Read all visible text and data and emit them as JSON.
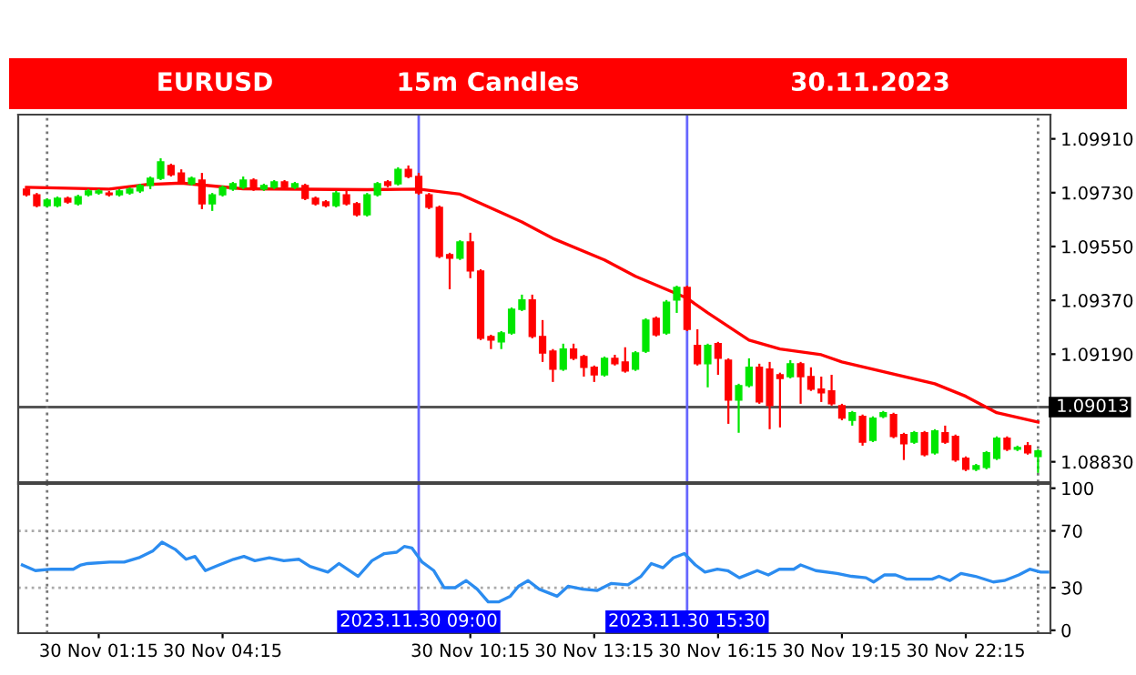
{
  "chart_data": [
    {
      "type": "candlestick",
      "title": "EURUSD",
      "subtitle": "15m Candles",
      "annotations": [
        "30.11.2023"
      ],
      "x": [
        "2023-11-29T23:30",
        "2023-11-29T23:45",
        "2023-11-30T00:00",
        "2023-11-30T00:15",
        "2023-11-30T00:30",
        "2023-11-30T00:45",
        "2023-11-30T01:00",
        "2023-11-30T01:15",
        "2023-11-30T01:30",
        "2023-11-30T01:45",
        "2023-11-30T02:00",
        "2023-11-30T02:15",
        "2023-11-30T02:30",
        "2023-11-30T02:45",
        "2023-11-30T03:00",
        "2023-11-30T03:15",
        "2023-11-30T03:30",
        "2023-11-30T03:45",
        "2023-11-30T04:00",
        "2023-11-30T04:15",
        "2023-11-30T04:30",
        "2023-11-30T04:45",
        "2023-11-30T05:00",
        "2023-11-30T05:15",
        "2023-11-30T05:30",
        "2023-11-30T05:45",
        "2023-11-30T06:00",
        "2023-11-30T06:15",
        "2023-11-30T06:30",
        "2023-11-30T06:45",
        "2023-11-30T07:00",
        "2023-11-30T07:15",
        "2023-11-30T07:30",
        "2023-11-30T07:45",
        "2023-11-30T08:00",
        "2023-11-30T08:15",
        "2023-11-30T08:30",
        "2023-11-30T08:45",
        "2023-11-30T09:00",
        "2023-11-30T09:15",
        "2023-11-30T09:30",
        "2023-11-30T09:45",
        "2023-11-30T10:00",
        "2023-11-30T10:15",
        "2023-11-30T10:30",
        "2023-11-30T10:45",
        "2023-11-30T11:00",
        "2023-11-30T11:15",
        "2023-11-30T11:30",
        "2023-11-30T11:45",
        "2023-11-30T12:00",
        "2023-11-30T12:15",
        "2023-11-30T12:30",
        "2023-11-30T12:45",
        "2023-11-30T13:00",
        "2023-11-30T13:15",
        "2023-11-30T13:30",
        "2023-11-30T13:45",
        "2023-11-30T14:00",
        "2023-11-30T14:15",
        "2023-11-30T14:30",
        "2023-11-30T14:45",
        "2023-11-30T15:00",
        "2023-11-30T15:15",
        "2023-11-30T15:30",
        "2023-11-30T15:45",
        "2023-11-30T16:00",
        "2023-11-30T16:15",
        "2023-11-30T16:30",
        "2023-11-30T16:45",
        "2023-11-30T17:00",
        "2023-11-30T17:15",
        "2023-11-30T17:30",
        "2023-11-30T17:45",
        "2023-11-30T18:00",
        "2023-11-30T18:15",
        "2023-11-30T18:30",
        "2023-11-30T18:45",
        "2023-11-30T19:00",
        "2023-11-30T19:15",
        "2023-11-30T19:30",
        "2023-11-30T19:45",
        "2023-11-30T20:00",
        "2023-11-30T20:15",
        "2023-11-30T20:30",
        "2023-11-30T20:45",
        "2023-11-30T21:00",
        "2023-11-30T21:15",
        "2023-11-30T21:30",
        "2023-11-30T21:45",
        "2023-11-30T22:00",
        "2023-11-30T22:15",
        "2023-11-30T22:30",
        "2023-11-30T22:45",
        "2023-11-30T23:00",
        "2023-11-30T23:15",
        "2023-11-30T23:30",
        "2023-11-30T23:45",
        "2023-12-01T00:00"
      ],
      "ohlc": [
        [
          1.09742,
          1.09748,
          1.09717,
          1.09723
        ],
        [
          1.09723,
          1.09729,
          1.09681,
          1.09687
        ],
        [
          1.09687,
          1.09711,
          1.09681,
          1.09705
        ],
        [
          1.09687,
          1.09717,
          1.09681,
          1.09711
        ],
        [
          1.09711,
          1.09717,
          1.09693,
          1.09699
        ],
        [
          1.09693,
          1.09723,
          1.09687,
          1.09717
        ],
        [
          1.09723,
          1.09742,
          1.09717,
          1.09736
        ],
        [
          1.09729,
          1.09742,
          1.09723,
          1.09736
        ],
        [
          1.09729,
          1.09736,
          1.09717,
          1.09723
        ],
        [
          1.09723,
          1.09742,
          1.09717,
          1.09736
        ],
        [
          1.09729,
          1.09748,
          1.09723,
          1.09742
        ],
        [
          1.09736,
          1.0976,
          1.09729,
          1.09754
        ],
        [
          1.09754,
          1.09784,
          1.09742,
          1.09778
        ],
        [
          1.09778,
          1.09845,
          1.09772,
          1.09833
        ],
        [
          1.09821,
          1.09827,
          1.09784,
          1.0979
        ],
        [
          1.09796,
          1.09808,
          1.0976,
          1.09766
        ],
        [
          1.0976,
          1.09784,
          1.09754,
          1.09778
        ],
        [
          1.09772,
          1.09796,
          1.09675,
          1.09693
        ],
        [
          1.09693,
          1.09729,
          1.09669,
          1.09723
        ],
        [
          1.09723,
          1.09754,
          1.09717,
          1.09748
        ],
        [
          1.09742,
          1.09766,
          1.09736,
          1.0976
        ],
        [
          1.09748,
          1.09784,
          1.09742,
          1.09772
        ],
        [
          1.09772,
          1.09778,
          1.09736,
          1.09742
        ],
        [
          1.09742,
          1.0976,
          1.09736,
          1.09754
        ],
        [
          1.09748,
          1.09772,
          1.09742,
          1.09766
        ],
        [
          1.09766,
          1.09772,
          1.09742,
          1.09748
        ],
        [
          1.09748,
          1.09766,
          1.09742,
          1.0976
        ],
        [
          1.09754,
          1.0976,
          1.09705,
          1.09711
        ],
        [
          1.09711,
          1.09717,
          1.09687,
          1.09693
        ],
        [
          1.09699,
          1.09705,
          1.09681,
          1.09687
        ],
        [
          1.09687,
          1.09736,
          1.09681,
          1.09729
        ],
        [
          1.09723,
          1.09736,
          1.09687,
          1.09693
        ],
        [
          1.09693,
          1.09699,
          1.0965,
          1.09656
        ],
        [
          1.09656,
          1.09729,
          1.0965,
          1.09723
        ],
        [
          1.09723,
          1.09766,
          1.09717,
          1.0976
        ],
        [
          1.09766,
          1.09772,
          1.09748,
          1.09754
        ],
        [
          1.0976,
          1.09815,
          1.09754,
          1.09808
        ],
        [
          1.09808,
          1.09821,
          1.09778,
          1.09784
        ],
        [
          1.09784,
          1.09796,
          1.09723,
          1.09729
        ],
        [
          1.09723,
          1.09729,
          1.09675,
          1.09681
        ],
        [
          1.09681,
          1.09687,
          1.09511,
          1.09517
        ],
        [
          1.09523,
          1.09529,
          1.09407,
          1.09511
        ],
        [
          1.09511,
          1.09571,
          1.09505,
          1.09565
        ],
        [
          1.09565,
          1.09596,
          1.09444,
          1.09468
        ],
        [
          1.09468,
          1.09474,
          1.09237,
          1.09243
        ],
        [
          1.09249,
          1.09255,
          1.09207,
          1.09237
        ],
        [
          1.09231,
          1.09267,
          1.09207,
          1.09261
        ],
        [
          1.09261,
          1.09346,
          1.09255,
          1.0934
        ],
        [
          1.0934,
          1.09389,
          1.09334,
          1.09371
        ],
        [
          1.09371,
          1.09389,
          1.09243,
          1.09249
        ],
        [
          1.09249,
          1.09304,
          1.09164,
          1.09194
        ],
        [
          1.092,
          1.09207,
          1.09097,
          1.0914
        ],
        [
          1.0914,
          1.09225,
          1.09134,
          1.09207
        ],
        [
          1.09207,
          1.09225,
          1.0917,
          1.09176
        ],
        [
          1.09182,
          1.09188,
          1.09115,
          1.09146
        ],
        [
          1.09146,
          1.09152,
          1.09097,
          1.09121
        ],
        [
          1.09121,
          1.09182,
          1.09115,
          1.09176
        ],
        [
          1.09176,
          1.09188,
          1.09152,
          1.09158
        ],
        [
          1.09164,
          1.09213,
          1.09128,
          1.09134
        ],
        [
          1.0914,
          1.092,
          1.09134,
          1.09194
        ],
        [
          1.092,
          1.0931,
          1.09194,
          1.09304
        ],
        [
          1.0931,
          1.09316,
          1.09249,
          1.09255
        ],
        [
          1.09261,
          1.09371,
          1.09255,
          1.09364
        ],
        [
          1.09371,
          1.09419,
          1.09328,
          1.09413
        ],
        [
          1.09413,
          1.09419,
          1.09267,
          1.09273
        ],
        [
          1.09219,
          1.09273,
          1.09152,
          1.09158
        ],
        [
          1.09158,
          1.09225,
          1.09079,
          1.09219
        ],
        [
          1.09225,
          1.09231,
          1.09121,
          1.09176
        ],
        [
          1.0917,
          1.09176,
          1.08957,
          1.09036
        ],
        [
          1.09036,
          1.09091,
          1.08927,
          1.09085
        ],
        [
          1.09085,
          1.09176,
          1.09079,
          1.09146
        ],
        [
          1.09146,
          1.09158,
          1.09024,
          1.0903
        ],
        [
          1.0914,
          1.09164,
          1.08939,
          1.09018
        ],
        [
          1.09121,
          1.09128,
          1.08945,
          1.09109
        ],
        [
          1.09115,
          1.0917,
          1.09109,
          1.09158
        ],
        [
          1.09158,
          1.09164,
          1.09024,
          1.09115
        ],
        [
          1.09115,
          1.09146,
          1.09067,
          1.09073
        ],
        [
          1.09073,
          1.09115,
          1.0903,
          1.09061
        ],
        [
          1.09067,
          1.09121,
          1.09018,
          1.09024
        ],
        [
          1.09018,
          1.09024,
          1.08969,
          1.08976
        ],
        [
          1.08969,
          1.09,
          1.08951,
          1.08994
        ],
        [
          1.08982,
          1.08988,
          1.08884,
          1.08896
        ],
        [
          1.08902,
          1.08982,
          1.08896,
          1.08976
        ],
        [
          1.08982,
          1.09,
          1.08976,
          1.08994
        ],
        [
          1.08988,
          1.08994,
          1.08909,
          1.08915
        ],
        [
          1.08921,
          1.08927,
          1.08836,
          1.0889
        ],
        [
          1.08896,
          1.08933,
          1.0889,
          1.08927
        ],
        [
          1.08927,
          1.08933,
          1.08848,
          1.08854
        ],
        [
          1.0886,
          1.08939,
          1.08854,
          1.08933
        ],
        [
          1.08927,
          1.08951,
          1.0889,
          1.08896
        ],
        [
          1.08915,
          1.08921,
          1.0883,
          1.08836
        ],
        [
          1.08842,
          1.08848,
          1.08799,
          1.08805
        ],
        [
          1.08805,
          1.08823,
          1.08799,
          1.08817
        ],
        [
          1.08811,
          1.08866,
          1.08805,
          1.0886
        ],
        [
          1.08842,
          1.08915,
          1.08836,
          1.08909
        ],
        [
          1.08909,
          1.08915,
          1.08866,
          1.08872
        ],
        [
          1.08872,
          1.08884,
          1.08866,
          1.08878
        ],
        [
          1.08884,
          1.08896,
          1.08854,
          1.0886
        ],
        [
          1.08848,
          1.08872,
          1.08793,
          1.08866
        ]
      ],
      "colors": [
        "#ff0000",
        "#ff0000",
        "#00e600",
        "#00e600",
        "#ff0000",
        "#00e600",
        "#00e600",
        "#00e600",
        "#ff0000",
        "#00e600",
        "#00e600",
        "#00e600",
        "#00e600",
        "#00e600",
        "#ff0000",
        "#ff0000",
        "#00e600",
        "#ff0000",
        "#00e600",
        "#00e600",
        "#00e600",
        "#00e600",
        "#ff0000",
        "#00e600",
        "#00e600",
        "#ff0000",
        "#00e600",
        "#ff0000",
        "#ff0000",
        "#ff0000",
        "#00e600",
        "#ff0000",
        "#ff0000",
        "#00e600",
        "#00e600",
        "#ff0000",
        "#00e600",
        "#ff0000",
        "#ff0000",
        "#ff0000",
        "#ff0000",
        "#ff0000",
        "#00e600",
        "#ff0000",
        "#ff0000",
        "#ff0000",
        "#00e600",
        "#00e600",
        "#00e600",
        "#ff0000",
        "#ff0000",
        "#ff0000",
        "#00e600",
        "#ff0000",
        "#ff0000",
        "#ff0000",
        "#00e600",
        "#ff0000",
        "#ff0000",
        "#00e600",
        "#00e600",
        "#ff0000",
        "#00e600",
        "#00e600",
        "#ff0000",
        "#ff0000",
        "#00e600",
        "#ff0000",
        "#ff0000",
        "#00e600",
        "#00e600",
        "#ff0000",
        "#ff0000",
        "#ff0000",
        "#00e600",
        "#ff0000",
        "#ff0000",
        "#ff0000",
        "#ff0000",
        "#ff0000",
        "#00e600",
        "#ff0000",
        "#00e600",
        "#00e600",
        "#ff0000",
        "#ff0000",
        "#00e600",
        "#ff0000",
        "#00e600",
        "#ff0000",
        "#ff0000",
        "#ff0000",
        "#00e600",
        "#00e600",
        "#00e600",
        "#ff0000",
        "#00e600",
        "#ff0000",
        "#00e600"
      ],
      "series": [
        {
          "type": "line",
          "color": "#ff0000",
          "x": [
            "2023-11-29T23:30",
            "2023-11-30T01:30",
            "2023-11-30T02:24",
            "2023-11-30T03:15",
            "2023-11-30T04:45",
            "2023-11-30T07:45",
            "2023-11-30T09:00",
            "2023-11-30T10:00",
            "2023-11-30T11:00",
            "2023-11-30T11:30",
            "2023-11-30T12:15",
            "2023-11-30T13:30",
            "2023-11-30T14:15",
            "2023-11-30T15:30",
            "2023-11-30T16:00",
            "2023-11-30T17:00",
            "2023-11-30T17:45",
            "2023-11-30T18:45",
            "2023-11-30T19:15",
            "2023-11-30T21:30",
            "2023-11-30T22:15",
            "2023-11-30T23:00",
            "2023-12-01T00:00"
          ],
          "values": [
            1.09748,
            1.09742,
            1.09757,
            1.09762,
            1.09743,
            1.0974,
            1.09742,
            1.09725,
            1.09663,
            1.09632,
            1.09577,
            1.09505,
            1.0945,
            1.09377,
            1.09328,
            1.09237,
            1.09207,
            1.09188,
            1.09164,
            1.09091,
            1.09049,
            1.08994,
            1.08963
          ]
        }
      ],
      "xlim": [
        "2023-11-29T23:18",
        "2023-12-01T00:18"
      ],
      "ylim": [
        1.08762,
        1.09991
      ],
      "yticks": [
        {
          "value": 1.0991,
          "label": "1.09910"
        },
        {
          "value": 1.0973,
          "label": "1.09730"
        },
        {
          "value": 1.0955,
          "label": "1.09550"
        },
        {
          "value": 1.0937,
          "label": "1.09370"
        },
        {
          "value": 1.0919,
          "label": "1.09190"
        },
        {
          "value": 1.0883,
          "label": "1.08830"
        }
      ],
      "tick_labels": "y",
      "ref_lines": [
        {
          "axis": "y",
          "value": 1.09013,
          "label": "1.09013",
          "color": "#555555",
          "line_style": "solid"
        },
        {
          "axis": "x",
          "value": "2023-11-30T09:00",
          "label": null,
          "color": "#6666ff",
          "line_style": "solid"
        },
        {
          "axis": "x",
          "value": "2023-11-30T15:30",
          "label": null,
          "color": "#6666ff",
          "line_style": "solid"
        },
        {
          "axis": "x",
          "value": "2023-11-30T00:00",
          "label": null,
          "color": "#777777",
          "line_style": "dotted"
        },
        {
          "axis": "x",
          "value": "2023-12-01T00:00",
          "label": null,
          "color": "#777777",
          "line_style": "dotted"
        }
      ]
    },
    {
      "type": "line",
      "x": [
        "2023-11-29T23:24",
        "2023-11-29T23:43",
        "2023-11-30T00:06",
        "2023-11-30T00:38",
        "2023-11-30T00:49",
        "2023-11-30T00:59",
        "2023-11-30T01:31",
        "2023-11-30T01:52",
        "2023-11-30T02:13",
        "2023-11-30T02:34",
        "2023-11-30T02:47",
        "2023-11-30T03:06",
        "2023-11-30T03:22",
        "2023-11-30T03:35",
        "2023-11-30T03:50",
        "2023-11-30T04:10",
        "2023-11-30T04:31",
        "2023-11-30T04:46",
        "2023-11-30T05:02",
        "2023-11-30T05:23",
        "2023-11-30T05:44",
        "2023-11-30T06:06",
        "2023-11-30T06:22",
        "2023-11-30T06:48",
        "2023-11-30T07:04",
        "2023-11-30T07:32",
        "2023-11-30T07:52",
        "2023-11-30T08:10",
        "2023-11-30T08:28",
        "2023-11-30T08:39",
        "2023-11-30T08:50",
        "2023-11-30T09:05",
        "2023-11-30T09:22",
        "2023-11-30T09:37",
        "2023-11-30T09:53",
        "2023-11-30T10:09",
        "2023-11-30T10:25",
        "2023-11-30T10:41",
        "2023-11-30T10:56",
        "2023-11-30T11:13",
        "2023-11-30T11:25",
        "2023-11-30T11:39",
        "2023-11-30T11:55",
        "2023-11-30T12:21",
        "2023-11-30T12:37",
        "2023-11-30T12:58",
        "2023-11-30T13:19",
        "2023-11-30T13:40",
        "2023-11-30T14:04",
        "2023-11-30T14:23",
        "2023-11-30T14:38",
        "2023-11-30T14:55",
        "2023-11-30T15:10",
        "2023-11-30T15:26",
        "2023-11-30T15:42",
        "2023-11-30T15:56",
        "2023-11-30T16:14",
        "2023-11-30T16:29",
        "2023-11-30T16:46",
        "2023-11-30T17:12",
        "2023-11-30T17:28",
        "2023-11-30T17:44",
        "2023-11-30T18:05",
        "2023-11-30T18:15",
        "2023-11-30T18:37",
        "2023-11-30T19:08",
        "2023-11-30T19:29",
        "2023-11-30T19:50",
        "2023-11-30T20:01",
        "2023-11-30T20:17",
        "2023-11-30T20:33",
        "2023-11-30T20:49",
        "2023-11-30T21:26",
        "2023-11-30T21:36",
        "2023-11-30T21:52",
        "2023-11-30T22:08",
        "2023-11-30T22:29",
        "2023-11-30T22:55",
        "2023-11-30T23:11",
        "2023-11-30T23:32",
        "2023-11-30T23:48",
        "2023-12-01T00:04",
        "2023-12-01T00:14"
      ],
      "series": [
        {
          "color": "#2b8cf0",
          "values": [
            46,
            42,
            43,
            43,
            46,
            47,
            48,
            48,
            51,
            56,
            62,
            57,
            50,
            52,
            42,
            46,
            50,
            52,
            49,
            51,
            49,
            50,
            45,
            41,
            47,
            38,
            49,
            54,
            55,
            59,
            58,
            48,
            42,
            30,
            30,
            35,
            29,
            20,
            20,
            24,
            31,
            35,
            29,
            24,
            31,
            29,
            28,
            33,
            32,
            38,
            47,
            44,
            51,
            54,
            46,
            41,
            43,
            42,
            37,
            42,
            39,
            43,
            43,
            46,
            42,
            40,
            38,
            37,
            34,
            39,
            39,
            36,
            36,
            38,
            35,
            40,
            38,
            34,
            35,
            39,
            43,
            41,
            41
          ]
        }
      ],
      "xlim": [
        "2023-11-29T23:18",
        "2023-12-01T00:18"
      ],
      "ylim": [
        -2,
        103
      ],
      "yticks": [
        100,
        70,
        30,
        0
      ],
      "xticks": [
        {
          "value": "2023-11-30T01:15",
          "label": "30 Nov 01:15"
        },
        {
          "value": "2023-11-30T04:15",
          "label": "30 Nov 04:15"
        },
        {
          "value": "2023-11-30T10:15",
          "label": "30 Nov 10:15"
        },
        {
          "value": "2023-11-30T13:15",
          "label": "30 Nov 13:15"
        },
        {
          "value": "2023-11-30T16:15",
          "label": "30 Nov 16:15"
        },
        {
          "value": "2023-11-30T19:15",
          "label": "30 Nov 19:15"
        },
        {
          "value": "2023-11-30T22:15",
          "label": "30 Nov 22:15"
        }
      ],
      "ref_lines": [
        {
          "axis": "y",
          "value": 70,
          "label": null,
          "color": "#aaaaaa",
          "line_style": "dotted"
        },
        {
          "axis": "y",
          "value": 30,
          "label": null,
          "color": "#aaaaaa",
          "line_style": "dotted"
        },
        {
          "axis": "x",
          "value": "2023-11-30T09:00",
          "label": "2023.11.30 09:00",
          "color": "#6666ff",
          "line_style": "solid"
        },
        {
          "axis": "x",
          "value": "2023-11-30T15:30",
          "label": "2023.11.30 15:30",
          "color": "#6666ff",
          "line_style": "solid"
        },
        {
          "axis": "x",
          "value": "2023-11-30T00:00",
          "label": null,
          "color": "#777777",
          "line_style": "dotted"
        },
        {
          "axis": "x",
          "value": "2023-12-01T00:00",
          "label": null,
          "color": "#777777",
          "line_style": "dotted"
        }
      ]
    }
  ]
}
